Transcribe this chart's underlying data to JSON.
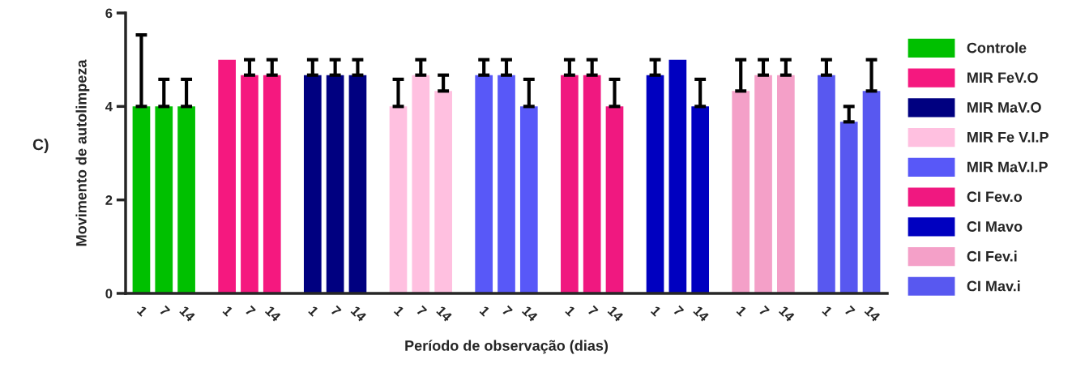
{
  "chart_data": {
    "type": "bar",
    "ylabel": "Movimento de autolimpeza",
    "xlabel": "Período de observação (dias)",
    "annotations": [
      "C)"
    ],
    "categories": [
      "1",
      "7",
      "14",
      "1",
      "7",
      "14",
      "1",
      "7",
      "14",
      "1",
      "7",
      "14",
      "1",
      "7",
      "14",
      "1",
      "7",
      "14",
      "1",
      "7",
      "14",
      "1",
      "7",
      "14",
      "1",
      "7",
      "14"
    ],
    "ylim": [
      0,
      6
    ],
    "yticks": [
      0,
      2,
      4,
      6
    ],
    "grid": false,
    "legend": "right",
    "series": [
      {
        "name": "Controle",
        "color": "#00c000",
        "values": [
          4,
          4,
          4,
          null,
          null,
          null,
          null,
          null,
          null,
          null,
          null,
          null,
          null,
          null,
          null,
          null,
          null,
          null,
          null,
          null,
          null,
          null,
          null,
          null,
          null,
          null,
          null
        ],
        "errors": [
          [
            4,
            5.53
          ],
          [
            4,
            4.58
          ],
          [
            4,
            4.58
          ],
          null,
          null,
          null,
          null,
          null,
          null,
          null,
          null,
          null,
          null,
          null,
          null,
          null,
          null,
          null,
          null,
          null,
          null,
          null,
          null,
          null,
          null,
          null,
          null
        ]
      },
      {
        "name": "MIR FeV.O",
        "color": "#f5187f",
        "values": [
          null,
          null,
          null,
          5,
          4.67,
          4.67,
          null,
          null,
          null,
          null,
          null,
          null,
          null,
          null,
          null,
          null,
          null,
          null,
          null,
          null,
          null,
          null,
          null,
          null,
          null,
          null,
          null
        ],
        "errors": [
          null,
          null,
          null,
          null,
          [
            4.67,
            5
          ],
          [
            4.67,
            5
          ],
          null,
          null,
          null,
          null,
          null,
          null,
          null,
          null,
          null,
          null,
          null,
          null,
          null,
          null,
          null,
          null,
          null,
          null,
          null,
          null,
          null
        ]
      },
      {
        "name": "MIR MaV.O",
        "color": "#000080",
        "values": [
          null,
          null,
          null,
          null,
          null,
          null,
          4.67,
          4.67,
          4.67,
          null,
          null,
          null,
          null,
          null,
          null,
          null,
          null,
          null,
          null,
          null,
          null,
          null,
          null,
          null,
          null,
          null,
          null
        ],
        "errors": [
          null,
          null,
          null,
          null,
          null,
          null,
          [
            4.67,
            5
          ],
          [
            4.67,
            5
          ],
          [
            4.67,
            5
          ],
          null,
          null,
          null,
          null,
          null,
          null,
          null,
          null,
          null,
          null,
          null,
          null,
          null,
          null,
          null,
          null,
          null,
          null
        ]
      },
      {
        "name": "MIR Fe V.I.P",
        "color": "#ffc0e0",
        "values": [
          null,
          null,
          null,
          null,
          null,
          null,
          null,
          null,
          null,
          4,
          4.67,
          4.33,
          null,
          null,
          null,
          null,
          null,
          null,
          null,
          null,
          null,
          null,
          null,
          null,
          null,
          null,
          null
        ],
        "errors": [
          null,
          null,
          null,
          null,
          null,
          null,
          null,
          null,
          null,
          [
            4,
            4.58
          ],
          [
            4.67,
            5
          ],
          [
            4.33,
            4.67
          ],
          null,
          null,
          null,
          null,
          null,
          null,
          null,
          null,
          null,
          null,
          null,
          null,
          null,
          null,
          null
        ]
      },
      {
        "name": "MIR MaV.I.P",
        "color": "#5858f8",
        "values": [
          null,
          null,
          null,
          null,
          null,
          null,
          null,
          null,
          null,
          null,
          null,
          null,
          4.67,
          4.67,
          4,
          null,
          null,
          null,
          null,
          null,
          null,
          null,
          null,
          null,
          null,
          null,
          null
        ],
        "errors": [
          null,
          null,
          null,
          null,
          null,
          null,
          null,
          null,
          null,
          null,
          null,
          null,
          [
            4.67,
            5
          ],
          [
            4.67,
            5
          ],
          [
            4,
            4.58
          ],
          null,
          null,
          null,
          null,
          null,
          null,
          null,
          null,
          null,
          null,
          null,
          null
        ]
      },
      {
        "name": "CI Fev.o",
        "color": "#f01880",
        "values": [
          null,
          null,
          null,
          null,
          null,
          null,
          null,
          null,
          null,
          null,
          null,
          null,
          null,
          null,
          null,
          4.67,
          4.67,
          4,
          null,
          null,
          null,
          null,
          null,
          null,
          null,
          null,
          null
        ],
        "errors": [
          null,
          null,
          null,
          null,
          null,
          null,
          null,
          null,
          null,
          null,
          null,
          null,
          null,
          null,
          null,
          [
            4.67,
            5
          ],
          [
            4.67,
            5
          ],
          [
            4,
            4.58
          ],
          null,
          null,
          null,
          null,
          null,
          null,
          null,
          null,
          null
        ]
      },
      {
        "name": "CI Mavo",
        "color": "#0000c0",
        "values": [
          null,
          null,
          null,
          null,
          null,
          null,
          null,
          null,
          null,
          null,
          null,
          null,
          null,
          null,
          null,
          null,
          null,
          null,
          4.67,
          5,
          4,
          null,
          null,
          null,
          null,
          null,
          null
        ],
        "errors": [
          null,
          null,
          null,
          null,
          null,
          null,
          null,
          null,
          null,
          null,
          null,
          null,
          null,
          null,
          null,
          null,
          null,
          null,
          [
            4.67,
            5
          ],
          null,
          [
            4,
            4.58
          ],
          null,
          null,
          null,
          null,
          null,
          null
        ]
      },
      {
        "name": "CI Fev.i",
        "color": "#f4a0c8",
        "values": [
          null,
          null,
          null,
          null,
          null,
          null,
          null,
          null,
          null,
          null,
          null,
          null,
          null,
          null,
          null,
          null,
          null,
          null,
          null,
          null,
          null,
          4.33,
          4.67,
          4.67,
          null,
          null,
          null
        ],
        "errors": [
          null,
          null,
          null,
          null,
          null,
          null,
          null,
          null,
          null,
          null,
          null,
          null,
          null,
          null,
          null,
          null,
          null,
          null,
          null,
          null,
          null,
          [
            4.33,
            5
          ],
          [
            4.67,
            5
          ],
          [
            4.67,
            5
          ],
          null,
          null,
          null
        ]
      },
      {
        "name": "CI Mav.i",
        "color": "#5858f0",
        "values": [
          null,
          null,
          null,
          null,
          null,
          null,
          null,
          null,
          null,
          null,
          null,
          null,
          null,
          null,
          null,
          null,
          null,
          null,
          null,
          null,
          null,
          null,
          null,
          null,
          4.67,
          3.67,
          4.33
        ],
        "errors": [
          null,
          null,
          null,
          null,
          null,
          null,
          null,
          null,
          null,
          null,
          null,
          null,
          null,
          null,
          null,
          null,
          null,
          null,
          null,
          null,
          null,
          null,
          null,
          null,
          [
            4.67,
            5
          ],
          [
            3.67,
            4
          ],
          [
            4.33,
            5
          ]
        ]
      }
    ]
  }
}
